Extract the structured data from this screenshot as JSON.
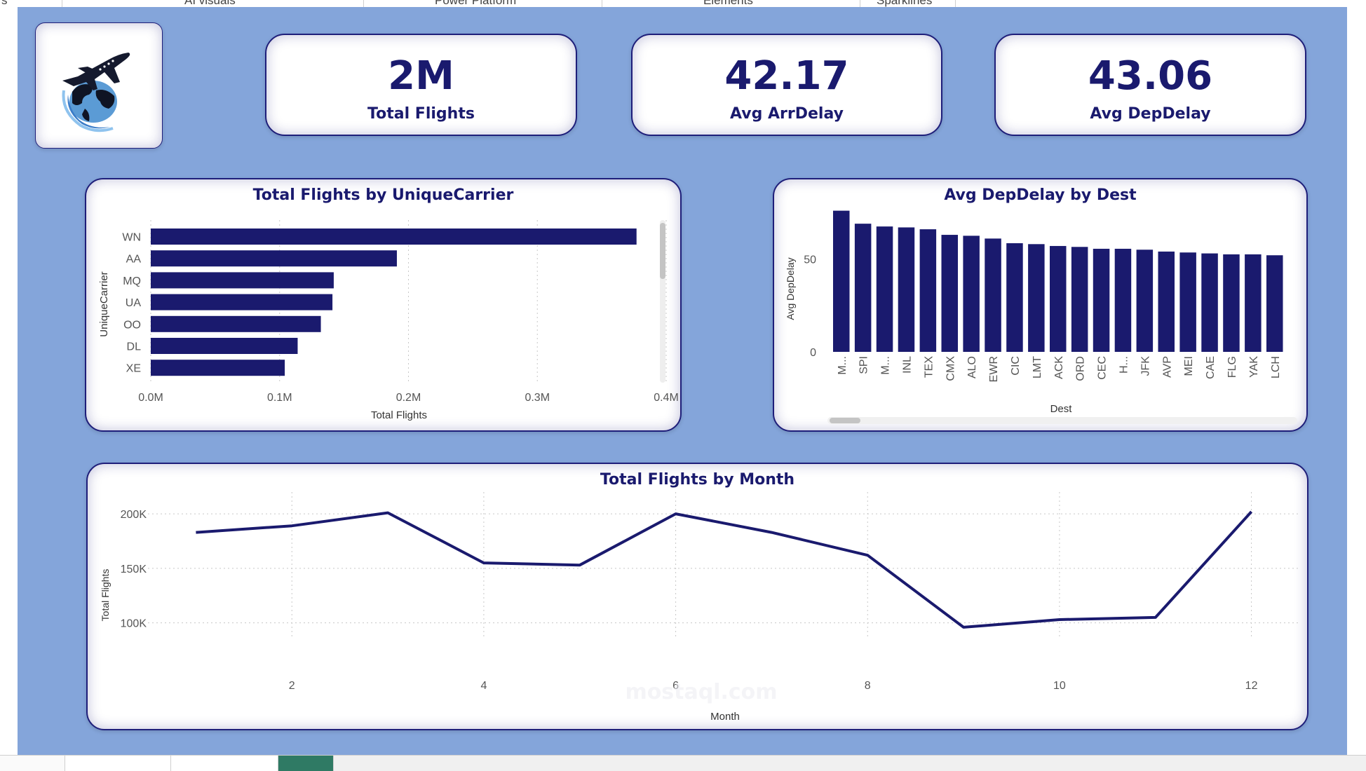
{
  "ribbon": {
    "tabs": [
      "AI visuals",
      "Power Platform",
      "Elements",
      "Sparklines"
    ]
  },
  "logo": {
    "icon": "airplane-globe-icon"
  },
  "kpis": [
    {
      "value": "2M",
      "label": "Total Flights"
    },
    {
      "value": "42.17",
      "label": "Avg ArrDelay"
    },
    {
      "value": "43.06",
      "label": "Avg DepDelay"
    }
  ],
  "colors": {
    "bar": "#1a1a6e",
    "line": "#1a1a6e",
    "canvas": "#84a5da",
    "text": "#1a1a6e"
  },
  "chart_data": [
    {
      "id": "carrier",
      "type": "bar",
      "orientation": "horizontal",
      "title": "Total Flights by UniqueCarrier",
      "xlabel": "Total Flights",
      "ylabel": "UniqueCarrier",
      "categories": [
        "WN",
        "AA",
        "MQ",
        "UA",
        "OO",
        "DL",
        "XE"
      ],
      "values": [
        377000,
        191000,
        142000,
        141000,
        132000,
        114000,
        104000
      ],
      "xlim": [
        0,
        400000
      ],
      "xticks": [
        0,
        100000,
        200000,
        300000,
        400000
      ],
      "xtick_labels": [
        "0.0M",
        "0.1M",
        "0.2M",
        "0.3M",
        "0.4M"
      ],
      "grid": "vertical-dotted",
      "scrollbar": "vertical"
    },
    {
      "id": "dest",
      "type": "bar",
      "orientation": "vertical",
      "title": "Avg DepDelay by Dest",
      "xlabel": "Dest",
      "ylabel": "Avg DepDelay",
      "categories": [
        "M...",
        "SPI",
        "M...",
        "INL",
        "TEX",
        "CMX",
        "ALO",
        "EWR",
        "CIC",
        "LMT",
        "ACK",
        "ORD",
        "CEC",
        "H...",
        "JFK",
        "AVP",
        "MEI",
        "CAE",
        "FLG",
        "YAK",
        "LCH"
      ],
      "values": [
        76,
        69,
        67.5,
        67,
        66,
        63,
        62.5,
        61,
        58.5,
        58,
        57,
        56.5,
        55.5,
        55.5,
        55,
        54,
        53.5,
        53,
        52.5,
        52.5,
        52
      ],
      "ylim": [
        0,
        80
      ],
      "yticks": [
        0,
        50
      ],
      "scrollbar": "horizontal"
    },
    {
      "id": "month",
      "type": "line",
      "title": "Total Flights by Month",
      "xlabel": "Month",
      "ylabel": "Total Flights",
      "x": [
        1,
        2,
        3,
        4,
        5,
        6,
        7,
        8,
        9,
        10,
        11,
        12
      ],
      "values": [
        183000,
        189000,
        201000,
        155000,
        153000,
        200000,
        183000,
        162000,
        96000,
        103000,
        105000,
        202000
      ],
      "xlim": [
        0.5,
        12.5
      ],
      "ylim": [
        85000,
        220000
      ],
      "xticks": [
        2,
        4,
        6,
        8,
        10,
        12
      ],
      "yticks": [
        100000,
        150000,
        200000
      ],
      "ytick_labels": [
        "100K",
        "150K",
        "200K"
      ],
      "grid": "dotted"
    }
  ],
  "watermark": {
    "text": "mostaql.com"
  }
}
